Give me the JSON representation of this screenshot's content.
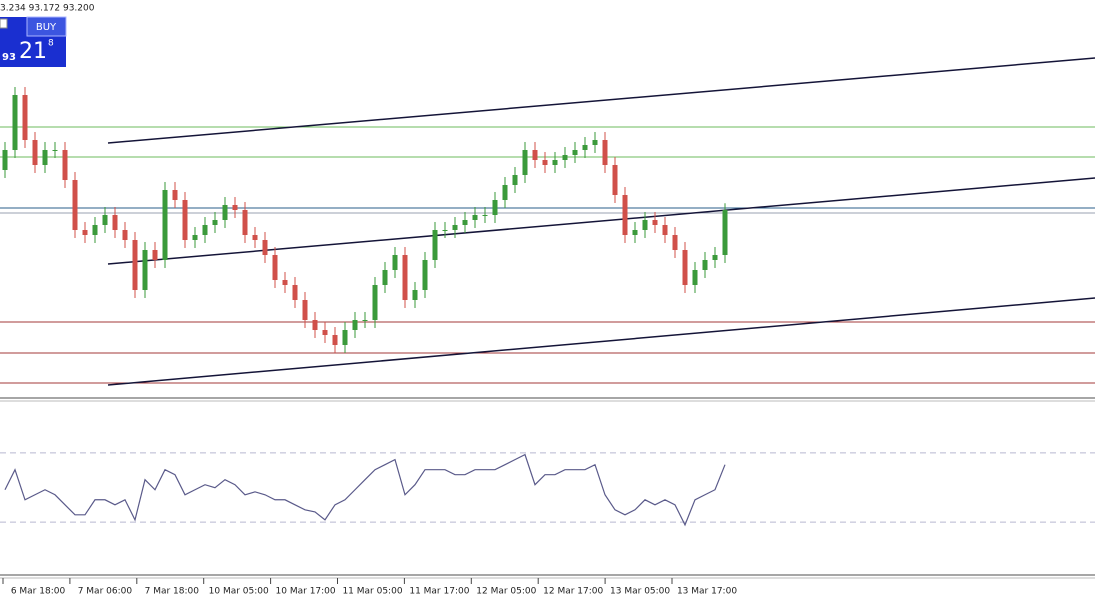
{
  "header": {
    "quote": "3.234 93.172 93.200"
  },
  "trade_panel": {
    "button": "BUY",
    "price_big": "93",
    "price_main": "21",
    "price_small": "8"
  },
  "chart_data": [
    {
      "type": "candlestick",
      "open": [
        93.4,
        93.5,
        93.775,
        93.55,
        93.425,
        93.5,
        93.5,
        93.35,
        93.1,
        93.075,
        93.125,
        93.175,
        93.1,
        93.05,
        92.8,
        93.0,
        92.95,
        93.3,
        93.25,
        93.05,
        93.075,
        93.125,
        93.15,
        93.225,
        93.2,
        93.075,
        93.05,
        92.975,
        92.85,
        92.825,
        92.75,
        92.65,
        92.6,
        92.575,
        92.525,
        92.6,
        92.65,
        92.65,
        92.825,
        92.9,
        92.975,
        92.75,
        92.8,
        92.95,
        93.1,
        93.1,
        93.125,
        93.15,
        93.175,
        93.175,
        93.25,
        93.325,
        93.375,
        93.5,
        93.45,
        93.425,
        93.45,
        93.475,
        93.5,
        93.525,
        93.55,
        93.425,
        93.275,
        93.075,
        93.1,
        93.15,
        93.125,
        93.075,
        93.0,
        92.825,
        92.9,
        92.95,
        92.975
      ],
      "high": [
        93.54,
        93.815,
        93.815,
        93.59,
        93.54,
        93.54,
        93.54,
        93.39,
        93.14,
        93.165,
        93.215,
        93.215,
        93.14,
        93.09,
        93.04,
        93.04,
        93.34,
        93.34,
        93.29,
        93.115,
        93.165,
        93.19,
        93.265,
        93.265,
        93.24,
        93.115,
        93.09,
        93.015,
        92.89,
        92.865,
        92.79,
        92.69,
        92.64,
        92.615,
        92.64,
        92.69,
        92.69,
        92.865,
        92.94,
        93.015,
        93.015,
        92.84,
        92.99,
        93.14,
        93.14,
        93.165,
        93.19,
        93.215,
        93.215,
        93.29,
        93.365,
        93.415,
        93.54,
        93.54,
        93.49,
        93.49,
        93.515,
        93.54,
        93.565,
        93.59,
        93.59,
        93.465,
        93.315,
        93.14,
        93.19,
        93.19,
        93.165,
        93.115,
        93.04,
        92.94,
        92.99,
        93.015,
        93.234
      ],
      "low": [
        93.36,
        93.46,
        93.51,
        93.385,
        93.385,
        93.46,
        93.31,
        93.06,
        93.035,
        93.035,
        93.085,
        93.06,
        93.01,
        92.76,
        92.76,
        92.91,
        92.91,
        93.21,
        93.01,
        93.01,
        93.035,
        93.085,
        93.11,
        93.16,
        93.035,
        93.01,
        92.935,
        92.81,
        92.785,
        92.71,
        92.61,
        92.56,
        92.535,
        92.485,
        92.485,
        92.56,
        92.61,
        92.61,
        92.785,
        92.86,
        92.71,
        92.71,
        92.76,
        92.91,
        93.06,
        93.06,
        93.085,
        93.11,
        93.135,
        93.135,
        93.21,
        93.285,
        93.335,
        93.41,
        93.385,
        93.385,
        93.41,
        93.435,
        93.46,
        93.485,
        93.385,
        93.235,
        93.035,
        93.035,
        93.06,
        93.085,
        93.035,
        92.96,
        92.785,
        92.785,
        92.86,
        92.91,
        92.935
      ],
      "close": [
        93.5,
        93.775,
        93.55,
        93.425,
        93.5,
        93.5,
        93.35,
        93.1,
        93.075,
        93.125,
        93.175,
        93.1,
        93.05,
        92.8,
        93.0,
        92.95,
        93.3,
        93.25,
        93.05,
        93.075,
        93.125,
        93.15,
        93.225,
        93.2,
        93.075,
        93.05,
        92.975,
        92.85,
        92.825,
        92.75,
        92.65,
        92.6,
        92.575,
        92.525,
        92.6,
        92.65,
        92.65,
        92.825,
        92.9,
        92.975,
        92.75,
        92.8,
        92.95,
        93.1,
        93.1,
        93.125,
        93.15,
        93.175,
        93.175,
        93.25,
        93.325,
        93.375,
        93.5,
        93.45,
        93.425,
        93.45,
        93.475,
        93.5,
        93.525,
        93.55,
        93.425,
        93.275,
        93.075,
        93.1,
        93.15,
        93.125,
        93.075,
        93.0,
        92.825,
        92.9,
        92.95,
        92.975,
        93.2
      ],
      "up_color": "#3a9a3a",
      "down_color": "#d0504a",
      "ylim": [
        92.26,
        94.25
      ],
      "levels": [
        {
          "value": 93.615,
          "color": "#6dbb5d"
        },
        {
          "value": 93.465,
          "color": "#6dbb5d"
        },
        {
          "value": 93.21,
          "color": "#2a5d8a"
        },
        {
          "value": 93.185,
          "color": "#9aa0b0"
        },
        {
          "value": 92.64,
          "color": "#a33a3a"
        },
        {
          "value": 92.485,
          "color": "#a33a3a"
        },
        {
          "value": 92.335,
          "color": "#a33a3a"
        }
      ],
      "trendlines": [
        {
          "start": 93.535,
          "end": 93.96,
          "color": "#141438"
        },
        {
          "start": 92.93,
          "end": 93.36,
          "color": "#141438"
        },
        {
          "start": 92.325,
          "end": 92.76,
          "color": "#141438"
        }
      ]
    },
    {
      "type": "line",
      "values": [
        48.7,
        60.3,
        42.9,
        45.8,
        48.7,
        45.8,
        40,
        34.2,
        34.2,
        42.9,
        42.9,
        40,
        42.9,
        31.3,
        54.5,
        48.7,
        60.3,
        57.4,
        45.8,
        48.7,
        51.6,
        49.9,
        54.5,
        51.6,
        45.8,
        47.5,
        45.8,
        42.9,
        42.9,
        40,
        37.1,
        35.9,
        31.3,
        40,
        42.9,
        48.7,
        54.5,
        60.3,
        63.2,
        66.1,
        45.8,
        51.6,
        60.3,
        60.3,
        60.3,
        57.4,
        57.4,
        60.3,
        60.3,
        60.3,
        63.2,
        66.1,
        69,
        51.6,
        57.4,
        57.4,
        60.3,
        60.3,
        60.3,
        63.2,
        45.8,
        37.1,
        34.2,
        37.1,
        42.9,
        40,
        42.9,
        40,
        28.4,
        42.9,
        45.8,
        48.7,
        63.2
      ],
      "color": "#5a5a8a",
      "ylim": [
        0,
        100
      ],
      "levels": [
        70,
        30
      ]
    }
  ],
  "time_axis": {
    "labels": [
      "6 Mar 18:00",
      "7 Mar 06:00",
      "7 Mar 18:00",
      "10 Mar 05:00",
      "10 Mar 17:00",
      "11 Mar 05:00",
      "11 Mar 17:00",
      "12 Mar 05:00",
      "12 Mar 17:00",
      "13 Mar 05:00",
      "13 Mar 17:00"
    ]
  }
}
